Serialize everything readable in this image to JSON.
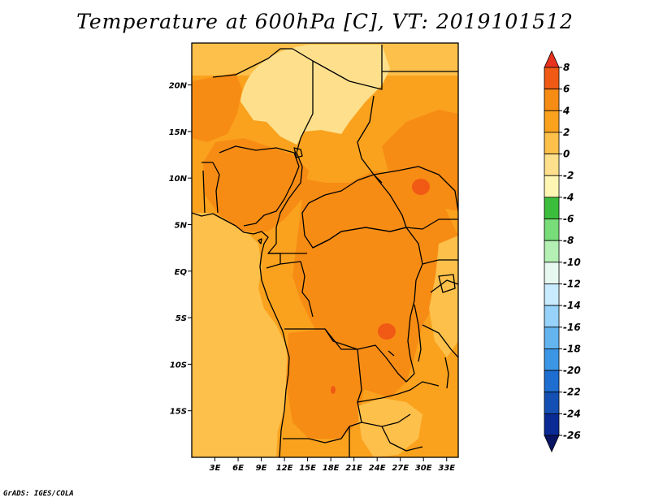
{
  "title": "Temperature at 600hPa [C], VT: 2019101512",
  "footer": "GrADS: IGES/COLA",
  "map": {
    "variable": "Temperature",
    "level": "600hPa",
    "units": "C",
    "valid_time": "2019101512",
    "lon_range": [
      0,
      34.5
    ],
    "lat_range": [
      -20,
      24.5
    ],
    "x_ticks": [
      {
        "value": 3,
        "label": "3E"
      },
      {
        "value": 6,
        "label": "6E"
      },
      {
        "value": 9,
        "label": "9E"
      },
      {
        "value": 12,
        "label": "12E"
      },
      {
        "value": 15,
        "label": "15E"
      },
      {
        "value": 18,
        "label": "18E"
      },
      {
        "value": 21,
        "label": "21E"
      },
      {
        "value": 24,
        "label": "24E"
      },
      {
        "value": 27,
        "label": "27E"
      },
      {
        "value": 30,
        "label": "30E"
      },
      {
        "value": 33,
        "label": "33E"
      }
    ],
    "y_ticks": [
      {
        "value": 20,
        "label": "20N"
      },
      {
        "value": 15,
        "label": "15N"
      },
      {
        "value": 10,
        "label": "10N"
      },
      {
        "value": 5,
        "label": "5N"
      },
      {
        "value": 0,
        "label": "EQ"
      },
      {
        "value": -5,
        "label": "5S"
      },
      {
        "value": -10,
        "label": "10S"
      },
      {
        "value": -15,
        "label": "15S"
      }
    ]
  },
  "colorbar": {
    "labels": [
      "8",
      "6",
      "4",
      "2",
      "0",
      "-2",
      "-4",
      "-6",
      "-8",
      "-10",
      "-12",
      "-14",
      "-16",
      "-18",
      "-20",
      "-22",
      "-24",
      "-26"
    ],
    "colors": [
      "#e8321e",
      "#f05a14",
      "#f78c14",
      "#faa21e",
      "#fdc04a",
      "#fee08c",
      "#fff6b4",
      "#3cbe3c",
      "#78dc78",
      "#b4f0b4",
      "#e6f8f0",
      "#c8ebff",
      "#96d2fa",
      "#64b4f0",
      "#3c96e6",
      "#1e6ed2",
      "#1450b4",
      "#0a2a96",
      "#0a1464"
    ]
  },
  "field_colors": {
    "c0": "#fdc04a",
    "c2": "#faa21e",
    "c4": "#f78c14",
    "c6": "#f05a14",
    "cm2": "#fee08c",
    "line": "#000000"
  }
}
